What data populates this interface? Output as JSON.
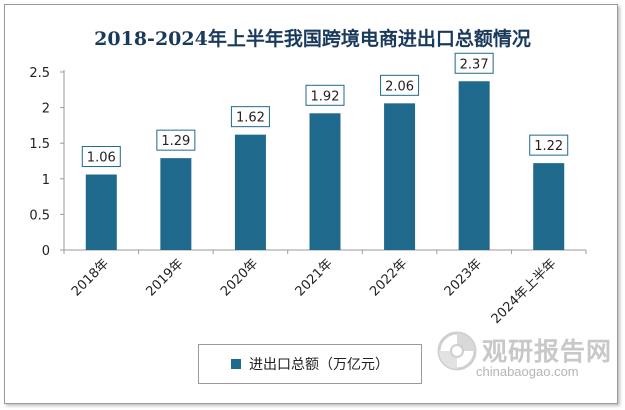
{
  "chart_data": {
    "type": "bar",
    "title": "2018-2024年上半年我国跨境电商进出口总额情况",
    "categories": [
      "2018年",
      "2019年",
      "2020年",
      "2021年",
      "2022年",
      "2023年",
      "2024年上半年"
    ],
    "series": [
      {
        "name": "进出口总额（万亿元）",
        "values": [
          1.06,
          1.29,
          1.62,
          1.92,
          2.06,
          2.37,
          1.22
        ],
        "data_labels": [
          "1.06",
          "1.29",
          "1.62",
          "1.92",
          "2.06",
          "2.37",
          "1.22"
        ]
      }
    ],
    "ylim": [
      0,
      2.5
    ],
    "yticks": [
      0,
      0.5,
      1,
      1.5,
      2,
      2.5
    ],
    "ytick_labels": [
      "0",
      "0.5",
      "1",
      "1.5",
      "2",
      "2.5"
    ],
    "xlabel": "",
    "ylabel": "",
    "grid": false,
    "legend_position": "bottom",
    "colors": {
      "bar": "#1f6a8c",
      "label_border": "#1f6a8c",
      "axis": "#9a9a9a"
    }
  },
  "watermark": {
    "name_cn": "观研报告网",
    "url": "chinabaogao.com"
  }
}
